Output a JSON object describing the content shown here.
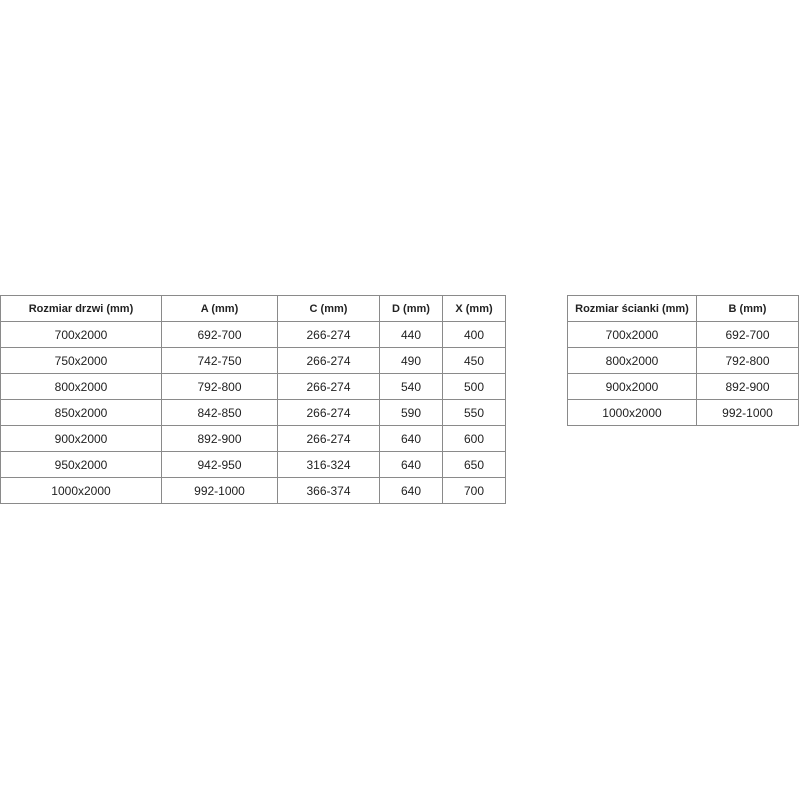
{
  "door_table": {
    "headers": [
      "Rozmiar drzwi (mm)",
      "A (mm)",
      "C (mm)",
      "D (mm)",
      "X (mm)"
    ],
    "rows": [
      [
        "700x2000",
        "692-700",
        "266-274",
        "440",
        "400"
      ],
      [
        "750x2000",
        "742-750",
        "266-274",
        "490",
        "450"
      ],
      [
        "800x2000",
        "792-800",
        "266-274",
        "540",
        "500"
      ],
      [
        "850x2000",
        "842-850",
        "266-274",
        "590",
        "550"
      ],
      [
        "900x2000",
        "892-900",
        "266-274",
        "640",
        "600"
      ],
      [
        "950x2000",
        "942-950",
        "316-324",
        "640",
        "650"
      ],
      [
        "1000x2000",
        "992-1000",
        "366-374",
        "640",
        "700"
      ]
    ]
  },
  "wall_table": {
    "headers": [
      "Rozmiar ścianki (mm)",
      "B (mm)"
    ],
    "rows": [
      [
        "700x2000",
        "692-700"
      ],
      [
        "800x2000",
        "792-800"
      ],
      [
        "900x2000",
        "892-900"
      ],
      [
        "1000x2000",
        "992-1000"
      ]
    ]
  }
}
